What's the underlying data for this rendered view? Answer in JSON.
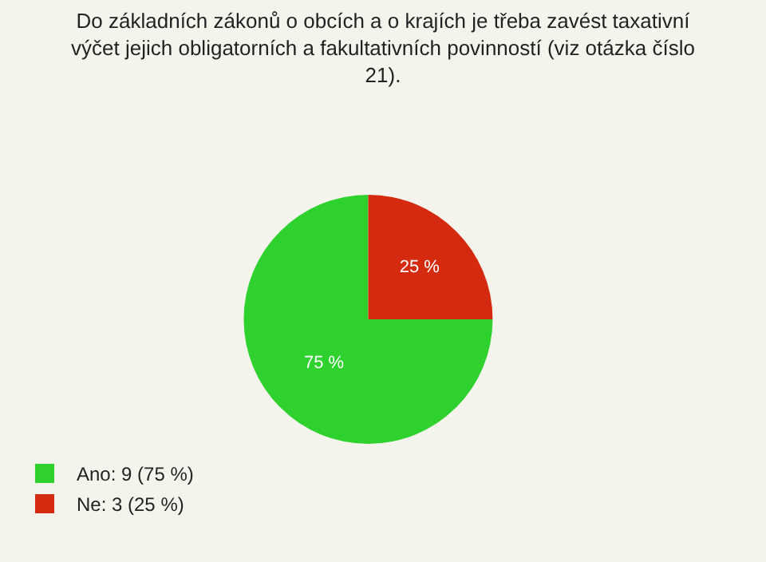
{
  "chart_data": {
    "type": "pie",
    "title": "Do základních zákonů o obcích a o krajích je třeba zavést taxativní\nvýčet jejich obligatorních a fakultativních povinností (viz otázka číslo\n21).",
    "categories": [
      "Ano: 9 (75 %)",
      "Ne: 3 (25 %)"
    ],
    "values": [
      75,
      25
    ],
    "value_labels": [
      "75 %",
      "25 %"
    ],
    "colors": [
      "#2fd12f",
      "#d42a0f"
    ],
    "legend": "bottom left"
  }
}
